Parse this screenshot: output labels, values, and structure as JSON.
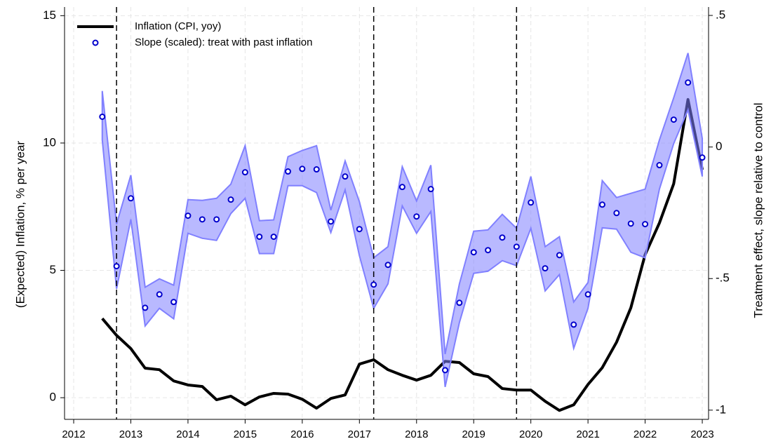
{
  "chart_data": {
    "type": "line",
    "y_label": "(Expected) Inflation, % per year",
    "y2_label": "Treatment effect, slope relative to control",
    "x": [
      2012.5,
      2012.75,
      2013.0,
      2013.25,
      2013.5,
      2013.75,
      2014.0,
      2014.25,
      2014.5,
      2014.75,
      2015.0,
      2015.25,
      2015.5,
      2015.75,
      2016.0,
      2016.25,
      2016.5,
      2016.75,
      2017.0,
      2017.25,
      2017.5,
      2017.75,
      2018.0,
      2018.25,
      2018.5,
      2018.75,
      2019.0,
      2019.25,
      2019.5,
      2019.75,
      2020.0,
      2020.25,
      2020.5,
      2020.75,
      2021.0,
      2021.25,
      2021.5,
      2021.75,
      2022.0,
      2022.25,
      2022.5,
      2022.75,
      2023.0
    ],
    "series": [
      {
        "name": "Inflation (CPI, yoy)",
        "color": "#000000",
        "style": "line",
        "values": [
          3.11,
          2.45,
          1.93,
          1.16,
          1.1,
          0.66,
          0.5,
          0.44,
          -0.08,
          0.06,
          -0.28,
          0.03,
          0.17,
          0.14,
          -0.06,
          -0.41,
          -0.03,
          0.11,
          1.32,
          1.49,
          1.1,
          0.88,
          0.69,
          0.88,
          1.43,
          1.38,
          0.94,
          0.83,
          0.36,
          0.3,
          0.3,
          -0.14,
          -0.5,
          -0.28,
          0.52,
          1.18,
          2.18,
          3.53,
          5.62,
          6.86,
          8.4,
          11.71,
          8.95
        ]
      },
      {
        "name": "Slope (scaled): treat with past inflation",
        "color": "#0000cc",
        "band_color": "#8080ff",
        "style": "markers",
        "axis": "y2",
        "values": [
          0.115,
          -0.453,
          -0.195,
          -0.611,
          -0.56,
          -0.589,
          -0.261,
          -0.275,
          -0.275,
          -0.2,
          -0.096,
          -0.341,
          -0.341,
          -0.093,
          -0.083,
          -0.085,
          -0.283,
          -0.112,
          -0.312,
          -0.523,
          -0.448,
          -0.152,
          -0.264,
          -0.16,
          -0.848,
          -0.592,
          -0.4,
          -0.392,
          -0.344,
          -0.379,
          -0.211,
          -0.461,
          -0.411,
          -0.675,
          -0.56,
          -0.219,
          -0.251,
          -0.291,
          -0.293,
          -0.069,
          0.104,
          0.245,
          -0.04
        ],
        "upper": [
          0.213,
          -0.293,
          -0.107,
          -0.533,
          -0.501,
          -0.525,
          -0.2,
          -0.203,
          -0.195,
          -0.141,
          0.005,
          -0.28,
          -0.277,
          -0.037,
          -0.013,
          0.005,
          -0.24,
          -0.053,
          -0.208,
          -0.421,
          -0.379,
          -0.075,
          -0.205,
          -0.069,
          -0.787,
          -0.52,
          -0.32,
          -0.315,
          -0.256,
          -0.309,
          -0.112,
          -0.379,
          -0.341,
          -0.589,
          -0.515,
          -0.128,
          -0.192,
          -0.176,
          -0.16,
          0.027,
          0.187,
          0.357,
          0.032
        ],
        "lower": [
          0.027,
          -0.539,
          -0.275,
          -0.68,
          -0.613,
          -0.653,
          -0.328,
          -0.347,
          -0.355,
          -0.253,
          -0.195,
          -0.405,
          -0.405,
          -0.147,
          -0.147,
          -0.173,
          -0.325,
          -0.163,
          -0.413,
          -0.613,
          -0.52,
          -0.224,
          -0.328,
          -0.245,
          -0.912,
          -0.667,
          -0.48,
          -0.472,
          -0.432,
          -0.451,
          -0.309,
          -0.547,
          -0.485,
          -0.765,
          -0.613,
          -0.307,
          -0.312,
          -0.4,
          -0.421,
          -0.16,
          0.013,
          0.141,
          -0.112
        ]
      }
    ],
    "vlines": [
      2012.75,
      2017.25,
      2019.75
    ],
    "xlim": [
      2011.84,
      2023.11
    ],
    "xticks": [
      2012,
      2013,
      2014,
      2015,
      2016,
      2017,
      2018,
      2019,
      2020,
      2021,
      2022,
      2023
    ],
    "ylim": [
      -0.85,
      15.34
    ],
    "yticks": [
      0,
      5,
      10,
      15
    ],
    "y2lim": [
      -1.035,
      0.532
    ],
    "y2ticks": [
      {
        "value": 0.5,
        "label": ".5"
      },
      0,
      {
        "value": -0.5,
        "label": "-.5"
      },
      -1
    ],
    "grid": true,
    "legend": "top-left"
  }
}
